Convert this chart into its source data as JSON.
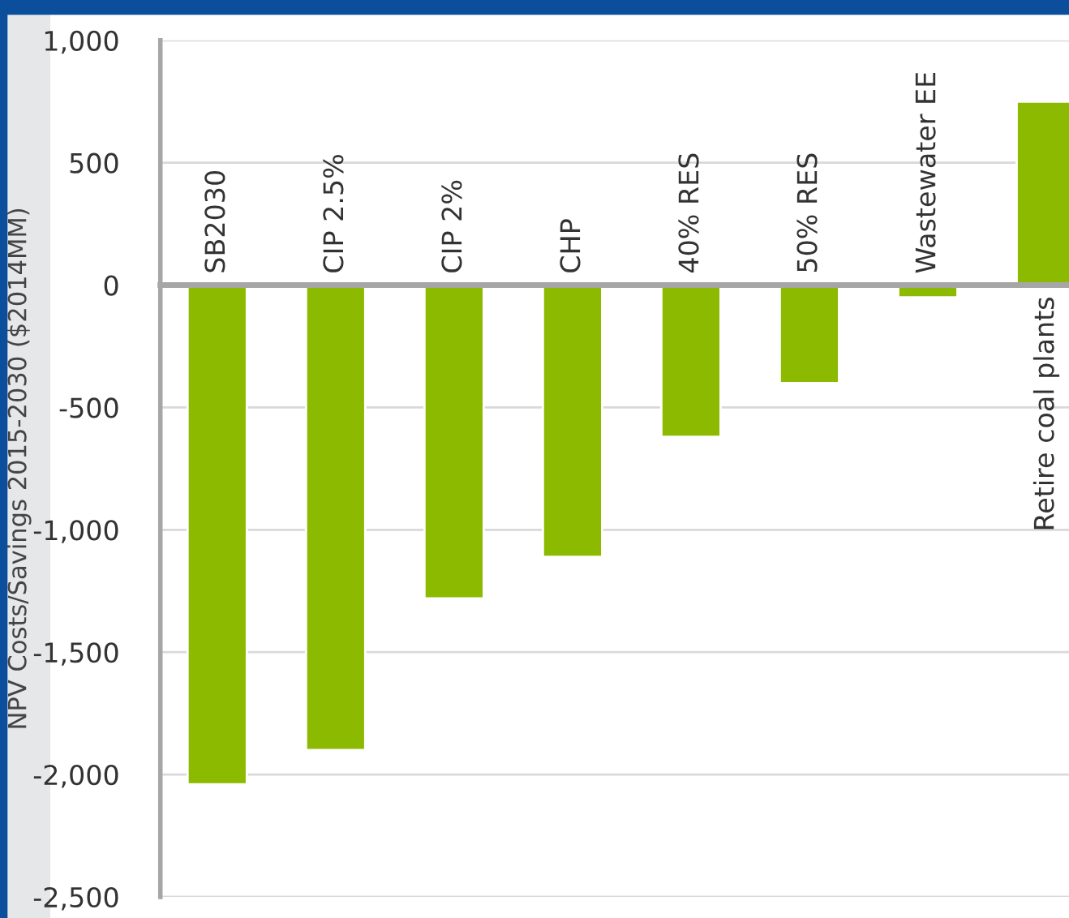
{
  "chart_data": {
    "type": "bar",
    "ylabel": "NPV Costs/Savings 2015-2030 ($2014MM)",
    "categories": [
      "SB2030",
      "CIP 2.5%",
      "CIP 2%",
      "CHP",
      "40% RES",
      "50% RES",
      "Wastewater EE",
      "Retire coal plants"
    ],
    "values": [
      -2040,
      -1900,
      -1280,
      -1110,
      -620,
      -400,
      -50,
      750
    ],
    "color": "#8cba00",
    "ylim": [
      -2500,
      1000
    ],
    "yticks": [
      {
        "value": -2500,
        "label": "-2,500"
      },
      {
        "value": -2000,
        "label": "-2,000"
      },
      {
        "value": -1500,
        "label": "-1,500"
      },
      {
        "value": -1000,
        "label": "-1,000"
      },
      {
        "value": -500,
        "label": "-500"
      },
      0,
      500,
      {
        "value": 1000,
        "label": "1,000"
      }
    ],
    "grid": "y"
  }
}
